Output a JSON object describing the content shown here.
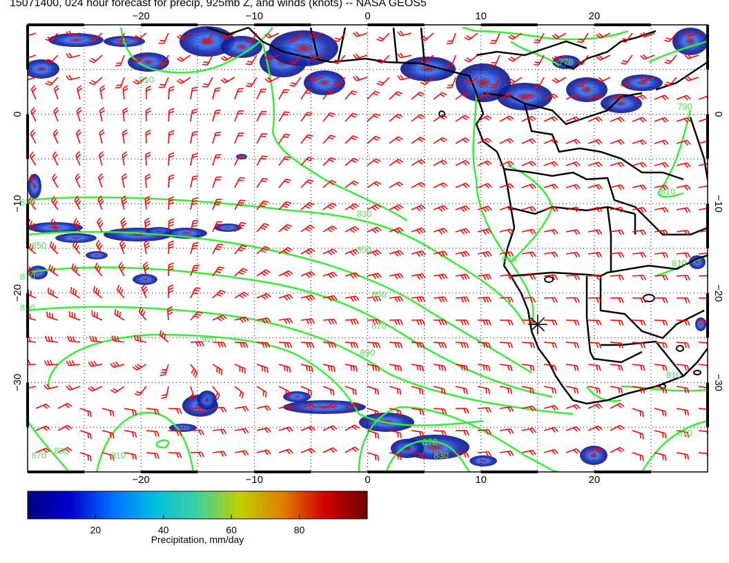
{
  "title": "15071400, 024 hour forecast for precip, 925mb Z, and winds (knots) -- NASA GEOS5",
  "map": {
    "lon_range": [
      -30,
      30
    ],
    "lat_range": [
      -40,
      10
    ],
    "lon_ticks": [
      -20,
      -10,
      0,
      10,
      20
    ],
    "lat_ticks": [
      0,
      -10,
      -20,
      -30
    ],
    "lon_tick_labels": [
      "−20",
      "−10",
      "0",
      "10",
      "20"
    ],
    "lat_tick_labels": [
      "0",
      "−10",
      "−20",
      "−30"
    ],
    "grid": true,
    "colors": {
      "wind_barbs": "#ff0000",
      "contours": "#33ee33",
      "contour_labels": "#55dd55",
      "coastline": "#000000",
      "precip_low": "#101a90",
      "precip_high": "#6a0000"
    },
    "station_marker": {
      "name": "star-marker",
      "lon": 15,
      "lat": -23.5
    },
    "contour_labels": [
      {
        "text": "770",
        "lon": 17.5,
        "lat": 5.5
      },
      {
        "text": "810",
        "lon": -19.5,
        "lat": 3.5
      },
      {
        "text": "830",
        "lon": -30,
        "lat": -10.2
      },
      {
        "text": "830",
        "lon": -0.3,
        "lat": -11.5
      },
      {
        "text": "850",
        "lon": -0.3,
        "lat": -15.5
      },
      {
        "text": "850",
        "lon": -29,
        "lat": -15
      },
      {
        "text": "850",
        "lon": 1,
        "lat": -20.5
      },
      {
        "text": "870",
        "lon": -30,
        "lat": -18.5
      },
      {
        "text": "870",
        "lon": 1,
        "lat": -24
      },
      {
        "text": "890",
        "lon": 0,
        "lat": -27
      },
      {
        "text": "910",
        "lon": -14,
        "lat": -25.5
      },
      {
        "text": "890",
        "lon": -30,
        "lat": -22
      },
      {
        "text": "870",
        "lon": -29,
        "lat": -38.5
      },
      {
        "text": "890",
        "lon": -27,
        "lat": -38
      },
      {
        "text": "910",
        "lon": -22,
        "lat": -38.5
      },
      {
        "text": "870",
        "lon": 5.5,
        "lat": -37
      },
      {
        "text": "830",
        "lon": 6.5,
        "lat": -38.5
      },
      {
        "text": "810",
        "lon": 28,
        "lat": -36
      },
      {
        "text": "810",
        "lon": 27,
        "lat": -29.5
      },
      {
        "text": "810",
        "lon": 27.5,
        "lat": -17
      },
      {
        "text": "810",
        "lon": 26.5,
        "lat": -9
      },
      {
        "text": "790",
        "lon": 28,
        "lat": 0.5
      },
      {
        "text": "850",
        "lon": 12.5,
        "lat": -16.5
      }
    ]
  },
  "colorbar": {
    "range": [
      0,
      100
    ],
    "ticks": [
      20,
      40,
      60,
      80
    ],
    "tick_labels": [
      "20",
      "40",
      "60",
      "80"
    ],
    "label": "Precipitation, mm/day",
    "stops": [
      "#000080",
      "#0000d0",
      "#0070ff",
      "#00c0e0",
      "#40d0a0",
      "#c0d000",
      "#e08000",
      "#d00000",
      "#700000"
    ]
  }
}
